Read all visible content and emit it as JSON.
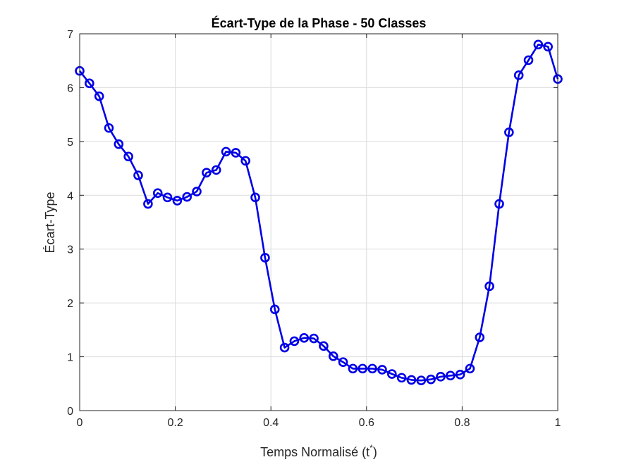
{
  "chart_data": {
    "type": "line",
    "title": "Écart-Type de la Phase - 50 Classes",
    "xlabel": "Temps Normalisé (t",
    "xlabel_superscript": "*",
    "xlabel_suffix": ")",
    "ylabel": "Écart-Type",
    "xlim": [
      0,
      1
    ],
    "ylim": [
      0,
      7
    ],
    "xticks": [
      0,
      0.2,
      0.4,
      0.6,
      0.8,
      1
    ],
    "xtick_labels": [
      "0",
      "0.2",
      "0.4",
      "0.6",
      "0.8",
      "1"
    ],
    "yticks": [
      0,
      1,
      2,
      3,
      4,
      5,
      6,
      7
    ],
    "ytick_labels": [
      "0",
      "1",
      "2",
      "3",
      "4",
      "5",
      "6",
      "7"
    ],
    "grid": true,
    "series": [
      {
        "color": "#0000e6",
        "marker": "circle",
        "x": [
          0,
          0.0204,
          0.0408,
          0.0612,
          0.0816,
          0.102,
          0.1224,
          0.1429,
          0.1633,
          0.1837,
          0.2041,
          0.2245,
          0.2449,
          0.2653,
          0.2857,
          0.3061,
          0.3265,
          0.3469,
          0.3673,
          0.3878,
          0.4082,
          0.4286,
          0.449,
          0.4694,
          0.4898,
          0.5102,
          0.5306,
          0.551,
          0.5714,
          0.5918,
          0.6122,
          0.6327,
          0.6531,
          0.6735,
          0.6939,
          0.7143,
          0.7347,
          0.7551,
          0.7755,
          0.7959,
          0.8163,
          0.8367,
          0.8571,
          0.8776,
          0.898,
          0.9184,
          0.9388,
          0.9592,
          0.9796,
          1
        ],
        "y": [
          6.31,
          6.08,
          5.84,
          5.25,
          4.95,
          4.72,
          4.37,
          3.84,
          4.04,
          3.96,
          3.9,
          3.97,
          4.07,
          4.42,
          4.47,
          4.81,
          4.79,
          4.64,
          3.96,
          2.84,
          1.88,
          1.17,
          1.29,
          1.35,
          1.34,
          1.2,
          1.01,
          0.9,
          0.78,
          0.78,
          0.78,
          0.76,
          0.68,
          0.61,
          0.57,
          0.56,
          0.58,
          0.63,
          0.65,
          0.67,
          0.78,
          1.36,
          2.31,
          3.84,
          5.17,
          6.23,
          6.51,
          6.8,
          6.76,
          6.16
        ]
      }
    ]
  }
}
